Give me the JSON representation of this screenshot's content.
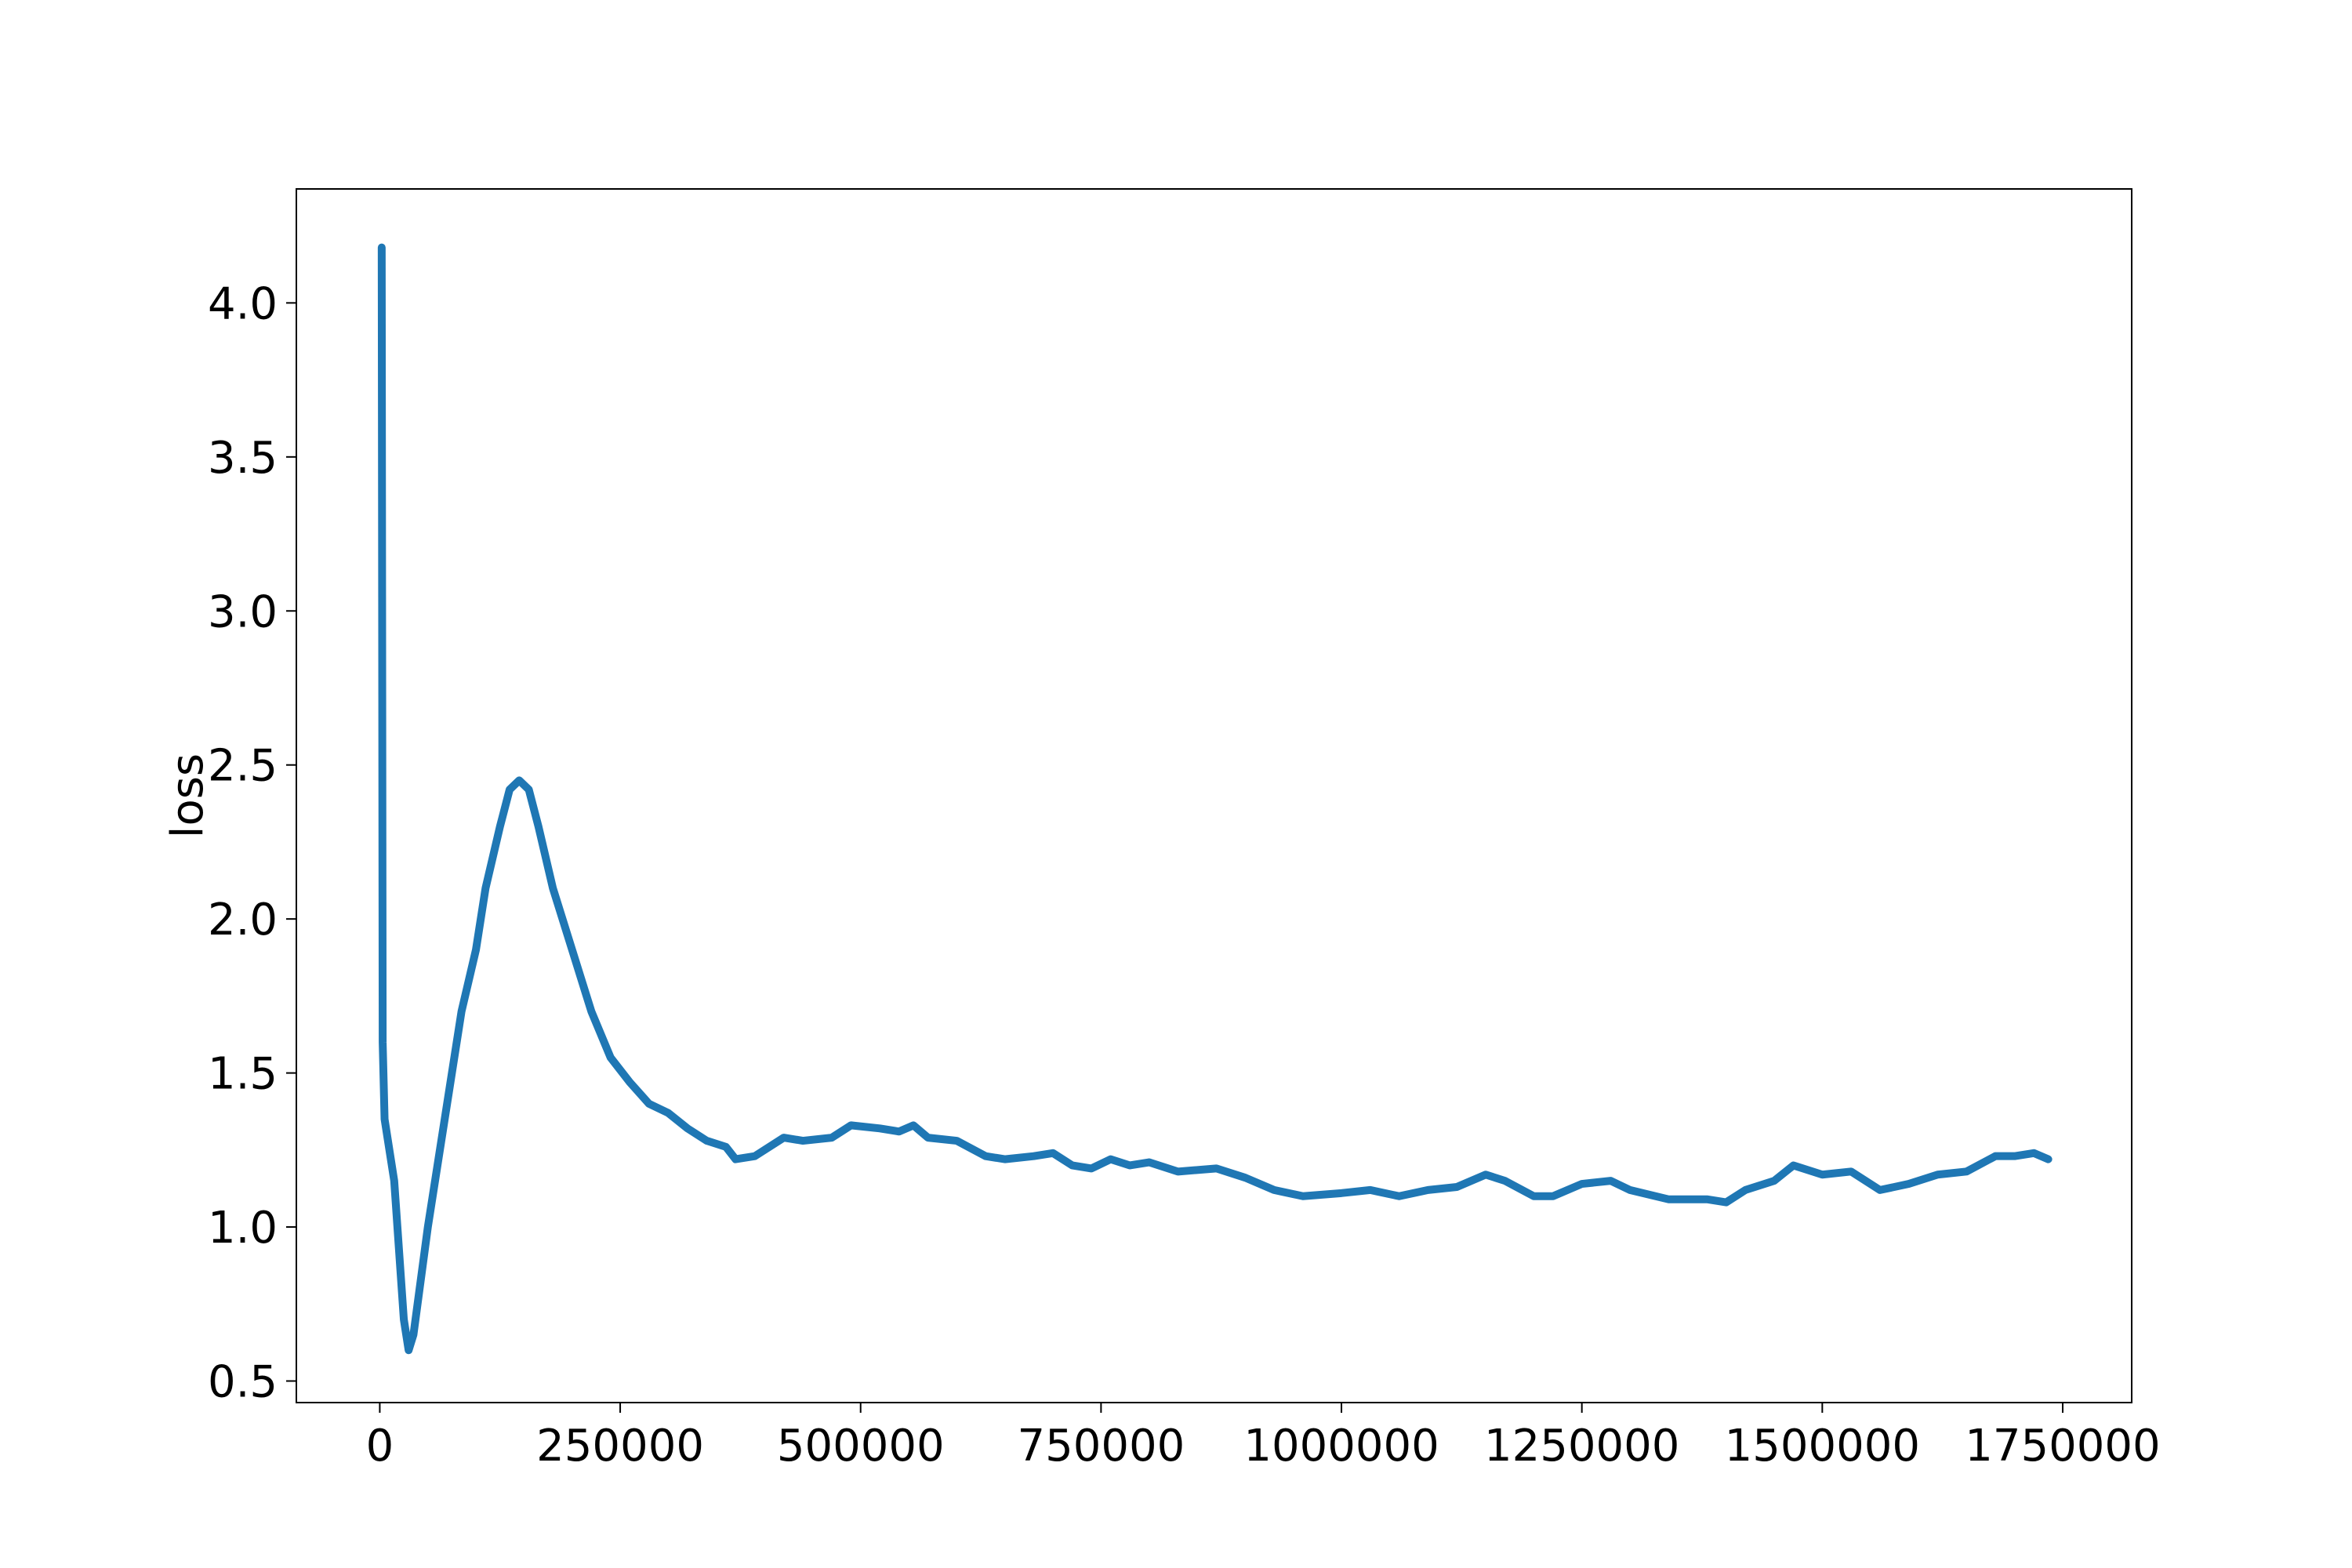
{
  "chart_data": {
    "type": "line",
    "y_label": "loss",
    "x": [
      2000,
      3000,
      5000,
      15000,
      25000,
      30000,
      35000,
      50000,
      70000,
      85000,
      100000,
      110000,
      125000,
      135000,
      145000,
      155000,
      165000,
      180000,
      200000,
      220000,
      240000,
      260000,
      280000,
      300000,
      320000,
      340000,
      360000,
      370000,
      390000,
      420000,
      440000,
      470000,
      490000,
      520000,
      540000,
      555000,
      570000,
      600000,
      630000,
      650000,
      680000,
      700000,
      720000,
      740000,
      760000,
      780000,
      800000,
      830000,
      870000,
      900000,
      930000,
      960000,
      1000000,
      1030000,
      1060000,
      1090000,
      1120000,
      1150000,
      1170000,
      1200000,
      1220000,
      1250000,
      1280000,
      1300000,
      1340000,
      1380000,
      1400000,
      1420000,
      1450000,
      1470000,
      1500000,
      1530000,
      1560000,
      1590000,
      1620000,
      1650000,
      1680000,
      1700000,
      1720000,
      1735000
    ],
    "series": [
      {
        "color": "#1f77b4",
        "values": [
          4.18,
          1.6,
          1.35,
          1.15,
          0.7,
          0.6,
          0.65,
          1.0,
          1.4,
          1.7,
          1.9,
          2.1,
          2.3,
          2.42,
          2.45,
          2.42,
          2.3,
          2.1,
          1.9,
          1.7,
          1.55,
          1.47,
          1.4,
          1.37,
          1.32,
          1.28,
          1.26,
          1.22,
          1.23,
          1.29,
          1.28,
          1.29,
          1.33,
          1.32,
          1.31,
          1.33,
          1.29,
          1.28,
          1.23,
          1.22,
          1.23,
          1.24,
          1.2,
          1.19,
          1.22,
          1.2,
          1.21,
          1.18,
          1.19,
          1.16,
          1.12,
          1.1,
          1.11,
          1.12,
          1.1,
          1.12,
          1.13,
          1.17,
          1.15,
          1.1,
          1.1,
          1.14,
          1.15,
          1.12,
          1.09,
          1.09,
          1.08,
          1.12,
          1.15,
          1.2,
          1.17,
          1.18,
          1.12,
          1.14,
          1.17,
          1.18,
          1.23,
          1.23,
          1.24,
          1.22
        ]
      }
    ],
    "xlim": [
      -86750,
      1821750
    ],
    "ylim": [
      0.43,
      4.37
    ],
    "xticks": [
      0,
      250000,
      500000,
      750000,
      1000000,
      1250000,
      1500000,
      1750000
    ],
    "yticks": [
      {
        "value": 0.5,
        "label": "0.5"
      },
      {
        "value": 1.0,
        "label": "1.0"
      },
      {
        "value": 1.5,
        "label": "1.5"
      },
      {
        "value": 2.0,
        "label": "2.0"
      },
      {
        "value": 2.5,
        "label": "2.5"
      },
      {
        "value": 3.0,
        "label": "3.0"
      },
      {
        "value": 3.5,
        "label": "3.5"
      },
      {
        "value": 4.0,
        "label": "4.0"
      }
    ]
  }
}
